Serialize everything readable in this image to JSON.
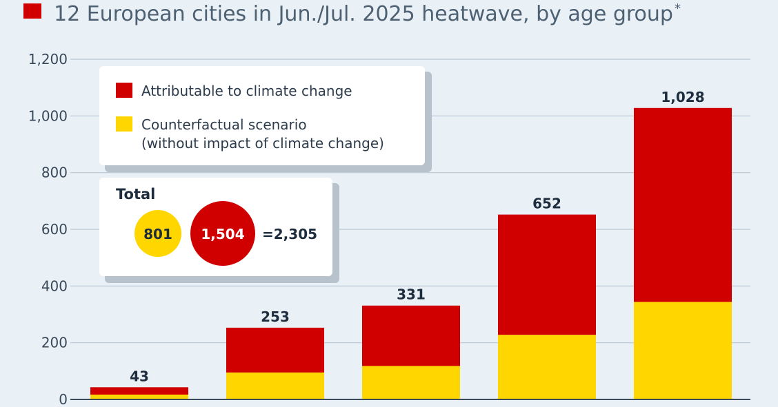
{
  "title": "12 European cities in Jun./Jul. 2025 heatwave, by age group",
  "title_marker": "*",
  "colors": {
    "attributable": "#d10000",
    "counterfactual": "#ffd600",
    "gridline": "#b9c6d2",
    "axis": "#3a4a5a",
    "background": "#e9f0f6",
    "card": "#ffffff",
    "card_shadow": "#b8c2cc"
  },
  "legend": {
    "attributable_label": "Attributable to climate change",
    "counterfactual_label_line1": "Counterfactual scenario",
    "counterfactual_label_line2": "(without impact of climate change)"
  },
  "total": {
    "heading": "Total",
    "counterfactual_value": "801",
    "attributable_value": "1,504",
    "sum_text": "=2,305"
  },
  "chart_data": {
    "type": "bar",
    "stacked": true,
    "categories": [
      "",
      "",
      "",
      "",
      ""
    ],
    "series": [
      {
        "name": "Counterfactual scenario (without impact of climate change)",
        "values": [
          17,
          95,
          118,
          228,
          344
        ]
      },
      {
        "name": "Attributable to climate change",
        "values": [
          26,
          158,
          213,
          424,
          684
        ]
      }
    ],
    "totals": [
      43,
      253,
      331,
      652,
      1028
    ],
    "total_labels": [
      "43",
      "253",
      "331",
      "652",
      "1,028"
    ],
    "ylim": [
      0,
      1200
    ],
    "yticks": [
      0,
      200,
      400,
      600,
      800,
      1000,
      1200
    ],
    "ytick_labels": [
      "0",
      "200",
      "400",
      "600",
      "800",
      "1,000",
      "1,200"
    ],
    "grid": true,
    "legend_position": "top-left"
  }
}
